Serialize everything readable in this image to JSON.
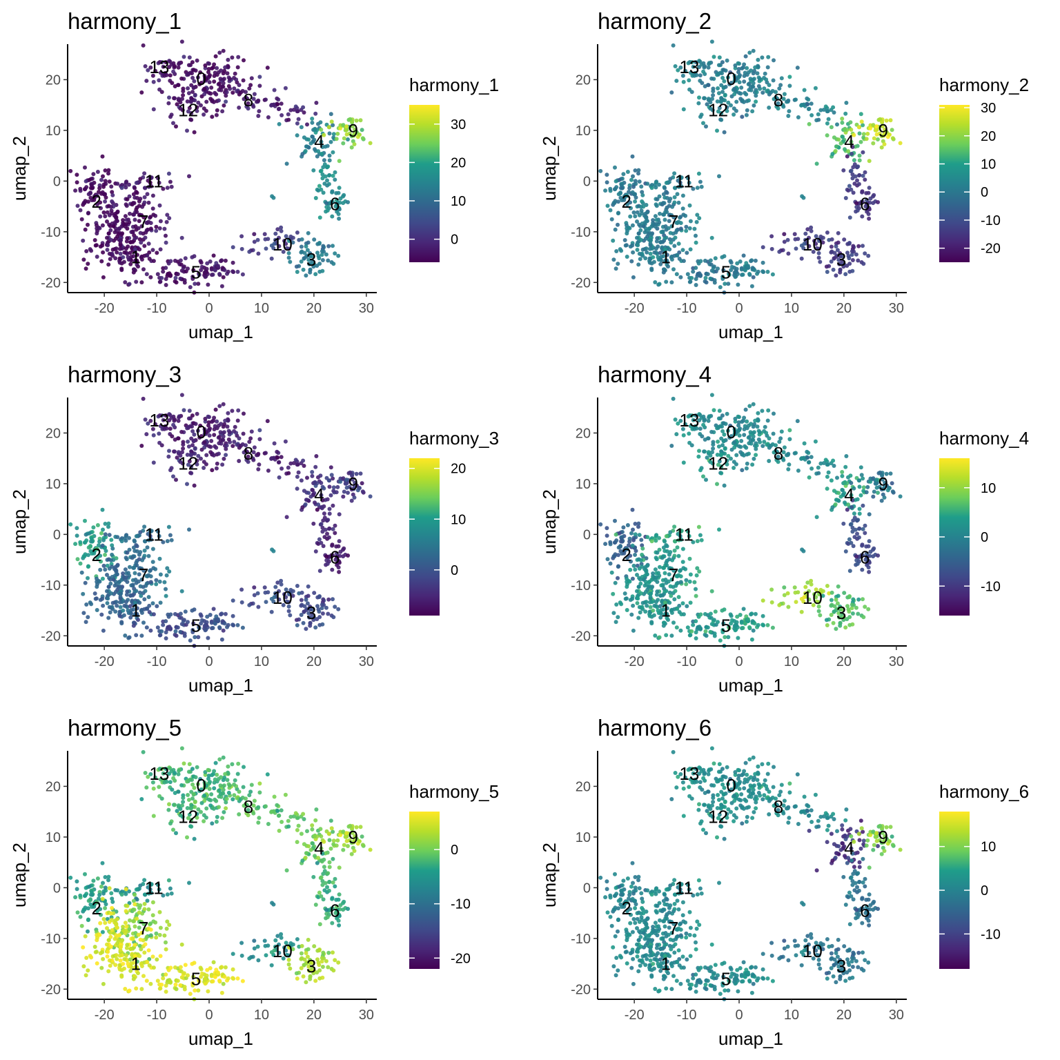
{
  "chart_data": [
    {
      "type": "scatter",
      "title": "harmony_1",
      "xlabel": "umap_1",
      "ylabel": "umap_2",
      "xlim": [
        -27,
        32
      ],
      "ylim": [
        -22,
        27
      ],
      "x_ticks": [
        -20,
        -10,
        0,
        10,
        20,
        30
      ],
      "y_ticks": [
        -20,
        -10,
        0,
        10,
        20
      ],
      "legend": {
        "title": "harmony_1",
        "position": "right",
        "scale": "viridis",
        "range": [
          -6,
          35
        ],
        "ticks": [
          0,
          10,
          20,
          30
        ]
      },
      "cluster_labels": [
        {
          "label": "0",
          "x": -1.5,
          "y": 20.2
        },
        {
          "label": "1",
          "x": -14,
          "y": -15
        },
        {
          "label": "2",
          "x": -21.5,
          "y": -4
        },
        {
          "label": "3",
          "x": 19.5,
          "y": -15.5
        },
        {
          "label": "4",
          "x": 21,
          "y": 7.8
        },
        {
          "label": "5",
          "x": -2.5,
          "y": -18
        },
        {
          "label": "6",
          "x": 24,
          "y": -4.5
        },
        {
          "label": "7",
          "x": -12.5,
          "y": -8
        },
        {
          "label": "8",
          "x": 7.5,
          "y": 16
        },
        {
          "label": "9",
          "x": 27.5,
          "y": 10
        },
        {
          "label": "10",
          "x": 14,
          "y": -12.5
        },
        {
          "label": "11",
          "x": -10.5,
          "y": 0
        },
        {
          "label": "12",
          "x": -4,
          "y": 14
        },
        {
          "label": "13",
          "x": -9.5,
          "y": 22.5
        }
      ],
      "cluster_values": {
        "0": -4,
        "1": -5,
        "2": -5,
        "3": 12,
        "4": 14,
        "5": -4,
        "6": 16,
        "7": -4,
        "8": -2,
        "9": 27,
        "10": 2,
        "11": -3,
        "12": -4,
        "13": -4
      }
    },
    {
      "type": "scatter",
      "title": "harmony_2",
      "xlabel": "umap_1",
      "ylabel": "umap_2",
      "xlim": [
        -27,
        32
      ],
      "ylim": [
        -22,
        27
      ],
      "x_ticks": [
        -20,
        -10,
        0,
        10,
        20,
        30
      ],
      "y_ticks": [
        -20,
        -10,
        0,
        10,
        20
      ],
      "legend": {
        "title": "harmony_2",
        "position": "right",
        "scale": "viridis",
        "range": [
          -25,
          31
        ],
        "ticks": [
          -20,
          -10,
          0,
          10,
          20,
          30
        ]
      },
      "cluster_labels": [
        {
          "label": "0",
          "x": -1.5,
          "y": 20.2
        },
        {
          "label": "1",
          "x": -14,
          "y": -15
        },
        {
          "label": "2",
          "x": -21.5,
          "y": -4
        },
        {
          "label": "3",
          "x": 19.5,
          "y": -15.5
        },
        {
          "label": "4",
          "x": 21,
          "y": 7.8
        },
        {
          "label": "5",
          "x": -2.5,
          "y": -18
        },
        {
          "label": "6",
          "x": 24,
          "y": -4.5
        },
        {
          "label": "7",
          "x": -12.5,
          "y": -8
        },
        {
          "label": "8",
          "x": 7.5,
          "y": 16
        },
        {
          "label": "9",
          "x": 27.5,
          "y": 10
        },
        {
          "label": "10",
          "x": 14,
          "y": -12.5
        },
        {
          "label": "11",
          "x": -10.5,
          "y": 0
        },
        {
          "label": "12",
          "x": -4,
          "y": 14
        },
        {
          "label": "13",
          "x": -9.5,
          "y": 22.5
        }
      ],
      "cluster_values": {
        "0": 2,
        "1": 1,
        "2": 0,
        "3": -15,
        "4": 15,
        "5": 0,
        "6": -15,
        "7": 1,
        "8": 3,
        "9": 25,
        "10": -14,
        "11": 1,
        "12": 2,
        "13": 2
      }
    },
    {
      "type": "scatter",
      "title": "harmony_3",
      "xlabel": "umap_1",
      "ylabel": "umap_2",
      "xlim": [
        -27,
        32
      ],
      "ylim": [
        -22,
        27
      ],
      "x_ticks": [
        -20,
        -10,
        0,
        10,
        20,
        30
      ],
      "y_ticks": [
        -20,
        -10,
        0,
        10,
        20
      ],
      "legend": {
        "title": "harmony_3",
        "position": "right",
        "scale": "viridis",
        "range": [
          -9,
          22
        ],
        "ticks": [
          0,
          10,
          20
        ]
      },
      "cluster_labels": [
        {
          "label": "0",
          "x": -1.5,
          "y": 20.2
        },
        {
          "label": "1",
          "x": -14,
          "y": -15
        },
        {
          "label": "2",
          "x": -21.5,
          "y": -4
        },
        {
          "label": "3",
          "x": 19.5,
          "y": -15.5
        },
        {
          "label": "4",
          "x": 21,
          "y": 7.8
        },
        {
          "label": "5",
          "x": -2.5,
          "y": -18
        },
        {
          "label": "6",
          "x": 24,
          "y": -4.5
        },
        {
          "label": "7",
          "x": -12.5,
          "y": -8
        },
        {
          "label": "8",
          "x": 7.5,
          "y": 16
        },
        {
          "label": "9",
          "x": 27.5,
          "y": 10
        },
        {
          "label": "10",
          "x": 14,
          "y": -12.5
        },
        {
          "label": "11",
          "x": -10.5,
          "y": 0
        },
        {
          "label": "12",
          "x": -4,
          "y": 14
        },
        {
          "label": "13",
          "x": -9.5,
          "y": 22.5
        }
      ],
      "cluster_values": {
        "0": -6,
        "1": 2,
        "2": 10,
        "3": -2,
        "4": -4,
        "5": -1,
        "6": -6,
        "7": 4,
        "8": -6,
        "9": -3,
        "10": -1,
        "11": 3,
        "12": -5,
        "13": -6
      }
    },
    {
      "type": "scatter",
      "title": "harmony_4",
      "xlabel": "umap_1",
      "ylabel": "umap_2",
      "xlim": [
        -27,
        32
      ],
      "ylim": [
        -22,
        27
      ],
      "x_ticks": [
        -20,
        -10,
        0,
        10,
        20,
        30
      ],
      "y_ticks": [
        -20,
        -10,
        0,
        10,
        20
      ],
      "legend": {
        "title": "harmony_4",
        "position": "right",
        "scale": "viridis",
        "range": [
          -16,
          16
        ],
        "ticks": [
          -10,
          0,
          10
        ]
      },
      "cluster_labels": [
        {
          "label": "0",
          "x": -1.5,
          "y": 20.2
        },
        {
          "label": "1",
          "x": -14,
          "y": -15
        },
        {
          "label": "2",
          "x": -21.5,
          "y": -4
        },
        {
          "label": "3",
          "x": 19.5,
          "y": -15.5
        },
        {
          "label": "4",
          "x": 21,
          "y": 7.8
        },
        {
          "label": "5",
          "x": -2.5,
          "y": -18
        },
        {
          "label": "6",
          "x": 24,
          "y": -4.5
        },
        {
          "label": "7",
          "x": -12.5,
          "y": -8
        },
        {
          "label": "8",
          "x": 7.5,
          "y": 16
        },
        {
          "label": "9",
          "x": 27.5,
          "y": 10
        },
        {
          "label": "10",
          "x": 14,
          "y": -12.5
        },
        {
          "label": "11",
          "x": -10.5,
          "y": 0
        },
        {
          "label": "12",
          "x": -4,
          "y": 14
        },
        {
          "label": "13",
          "x": -9.5,
          "y": 22.5
        }
      ],
      "cluster_values": {
        "0": 1,
        "1": 2,
        "2": -5,
        "3": 6,
        "4": 4,
        "5": 3,
        "6": -8,
        "7": 3,
        "8": 1,
        "9": -2,
        "10": 11,
        "11": 4,
        "12": 3,
        "13": 1
      }
    },
    {
      "type": "scatter",
      "title": "harmony_5",
      "xlabel": "umap_1",
      "ylabel": "umap_2",
      "xlim": [
        -27,
        32
      ],
      "ylim": [
        -22,
        27
      ],
      "x_ticks": [
        -20,
        -10,
        0,
        10,
        20,
        30
      ],
      "y_ticks": [
        -20,
        -10,
        0,
        10,
        20
      ],
      "legend": {
        "title": "harmony_5",
        "position": "right",
        "scale": "viridis",
        "range": [
          -22,
          7
        ],
        "ticks": [
          -20,
          -10,
          0
        ]
      },
      "cluster_labels": [
        {
          "label": "0",
          "x": -1.5,
          "y": 20.2
        },
        {
          "label": "1",
          "x": -14,
          "y": -15
        },
        {
          "label": "2",
          "x": -21.5,
          "y": -4
        },
        {
          "label": "3",
          "x": 19.5,
          "y": -15.5
        },
        {
          "label": "4",
          "x": 21,
          "y": 7.8
        },
        {
          "label": "5",
          "x": -2.5,
          "y": -18
        },
        {
          "label": "6",
          "x": 24,
          "y": -4.5
        },
        {
          "label": "7",
          "x": -12.5,
          "y": -8
        },
        {
          "label": "8",
          "x": 7.5,
          "y": 16
        },
        {
          "label": "9",
          "x": 27.5,
          "y": 10
        },
        {
          "label": "10",
          "x": 14,
          "y": -12.5
        },
        {
          "label": "11",
          "x": -10.5,
          "y": 0
        },
        {
          "label": "12",
          "x": -4,
          "y": 14
        },
        {
          "label": "13",
          "x": -9.5,
          "y": 22.5
        }
      ],
      "cluster_values": {
        "0": -2,
        "1": 5,
        "2": -4,
        "3": 2,
        "4": 0,
        "5": 5,
        "6": -3,
        "7": 1,
        "8": -1,
        "9": 2,
        "10": -6,
        "11": -6,
        "12": -3,
        "13": -3
      }
    },
    {
      "type": "scatter",
      "title": "harmony_6",
      "xlabel": "umap_1",
      "ylabel": "umap_2",
      "xlim": [
        -27,
        32
      ],
      "ylim": [
        -22,
        27
      ],
      "x_ticks": [
        -20,
        -10,
        0,
        10,
        20,
        30
      ],
      "y_ticks": [
        -20,
        -10,
        0,
        10,
        20
      ],
      "legend": {
        "title": "harmony_6",
        "position": "right",
        "scale": "viridis",
        "range": [
          -18,
          18
        ],
        "ticks": [
          -10,
          0,
          10
        ]
      },
      "cluster_labels": [
        {
          "label": "0",
          "x": -1.5,
          "y": 20.2
        },
        {
          "label": "1",
          "x": -14,
          "y": -15
        },
        {
          "label": "2",
          "x": -21.5,
          "y": -4
        },
        {
          "label": "3",
          "x": 19.5,
          "y": -15.5
        },
        {
          "label": "4",
          "x": 21,
          "y": 7.8
        },
        {
          "label": "5",
          "x": -2.5,
          "y": -18
        },
        {
          "label": "6",
          "x": 24,
          "y": -4.5
        },
        {
          "label": "7",
          "x": -12.5,
          "y": -8
        },
        {
          "label": "8",
          "x": 7.5,
          "y": 16
        },
        {
          "label": "9",
          "x": 27.5,
          "y": 10
        },
        {
          "label": "10",
          "x": 14,
          "y": -12.5
        },
        {
          "label": "11",
          "x": -10.5,
          "y": 0
        },
        {
          "label": "12",
          "x": -4,
          "y": 14
        },
        {
          "label": "13",
          "x": -9.5,
          "y": 22.5
        }
      ],
      "cluster_values": {
        "0": 2,
        "1": 1,
        "2": 0,
        "3": -3,
        "4": -12,
        "5": 1,
        "6": -3,
        "7": 1,
        "8": 1,
        "9": 10,
        "10": -2,
        "11": 1,
        "12": 2,
        "13": 2
      }
    }
  ]
}
